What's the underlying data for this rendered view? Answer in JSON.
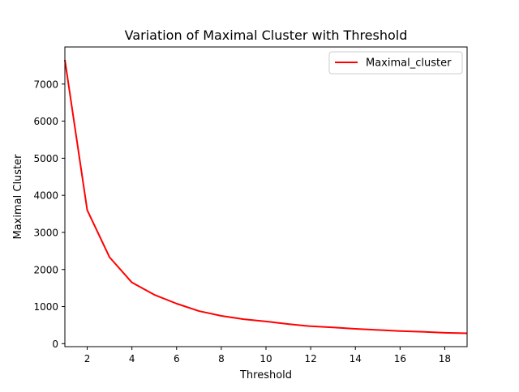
{
  "chart_data": {
    "type": "line",
    "title": "Variation of Maximal Cluster with Threshold",
    "xlabel": "Threshold",
    "ylabel": "Maximal Cluster",
    "xlim": [
      1,
      19
    ],
    "ylim": [
      -80,
      8000
    ],
    "xticks": [
      2,
      4,
      6,
      8,
      10,
      12,
      14,
      16,
      18
    ],
    "yticks": [
      0,
      1000,
      2000,
      3000,
      4000,
      5000,
      6000,
      7000
    ],
    "grid": false,
    "legend_position": "top-right",
    "series": [
      {
        "name": "Maximal_cluster",
        "color": "#ff0000",
        "x": [
          1,
          2,
          3,
          4,
          5,
          6,
          7,
          8,
          9,
          10,
          11,
          12,
          13,
          14,
          15,
          16,
          17,
          18,
          19
        ],
        "y": [
          7650,
          3600,
          2330,
          1650,
          1320,
          1080,
          880,
          750,
          660,
          600,
          530,
          470,
          440,
          400,
          370,
          340,
          320,
          295,
          280
        ]
      }
    ]
  }
}
